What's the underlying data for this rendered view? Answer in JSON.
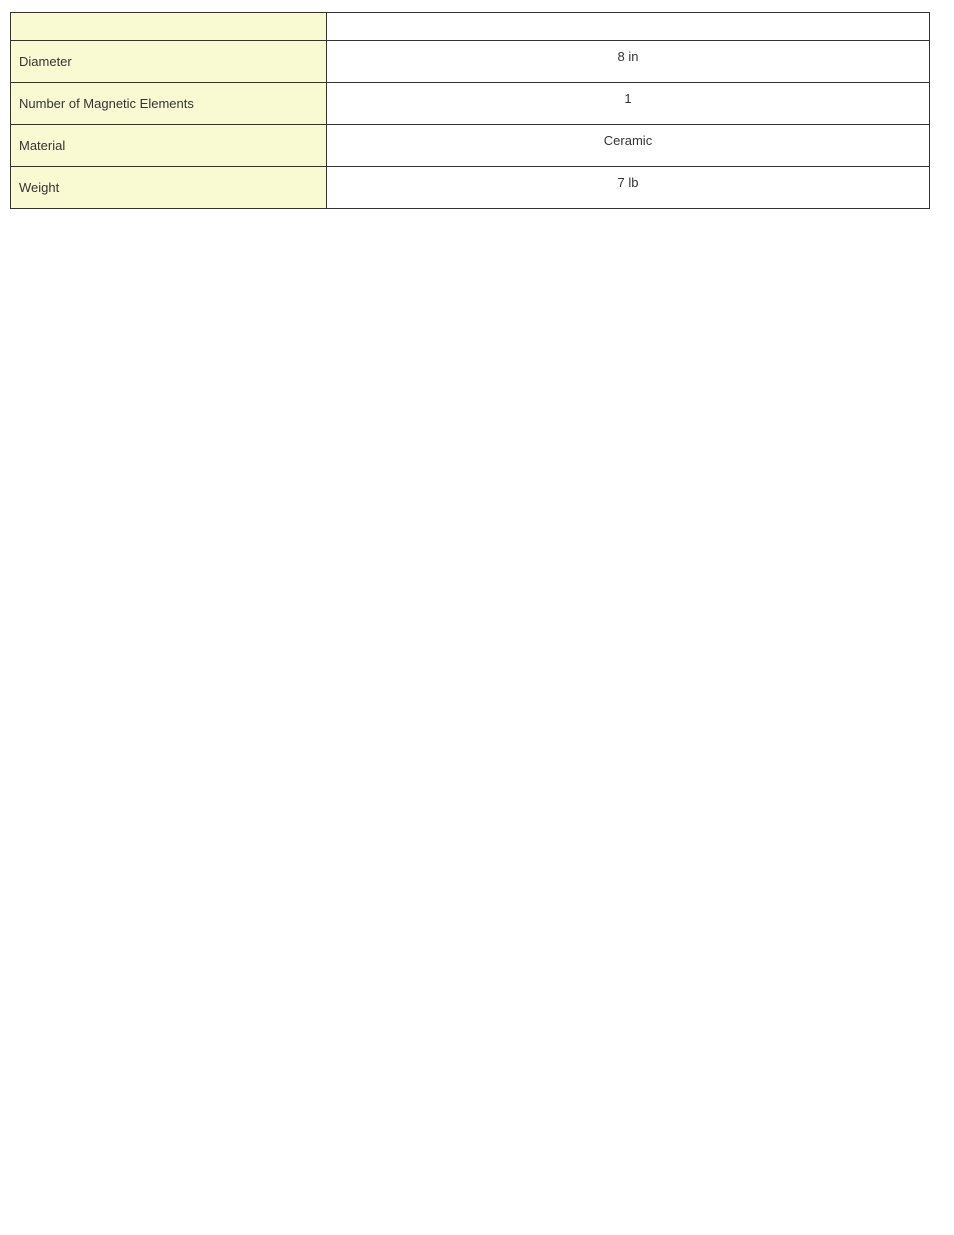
{
  "table": {
    "label_bg_color": "#fafad2",
    "value_bg_color": "#ffffff",
    "border_color": "#333333",
    "text_color": "#333333",
    "font_size_pt": 10,
    "rows": [
      {
        "label": "Diameter",
        "value": "8 in"
      },
      {
        "label": "Number of Magnetic Elements",
        "value": "1"
      },
      {
        "label": "Material",
        "value": "Ceramic"
      },
      {
        "label": "Weight",
        "value": "7 lb"
      }
    ]
  }
}
